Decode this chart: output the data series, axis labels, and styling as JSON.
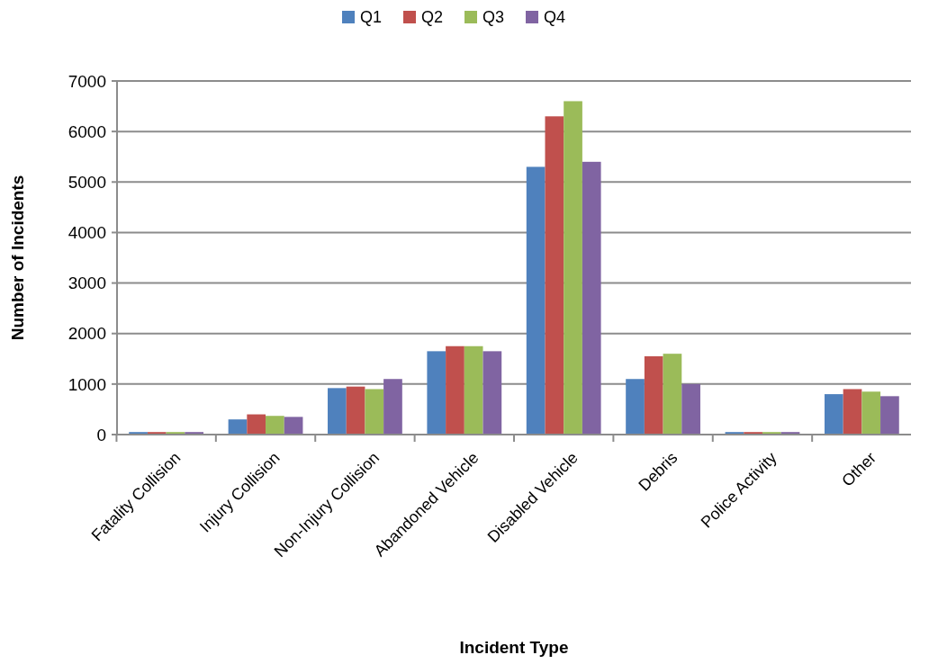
{
  "chart_data": {
    "type": "bar",
    "xlabel": "Incident Type",
    "ylabel": "Number of Incidents",
    "categories": [
      "Fatality Collision",
      "Injury Collision",
      "Non-Injury Collision",
      "Abandoned Vehicle",
      "Disabled Vehicle",
      "Debris",
      "Police Activity",
      "Other"
    ],
    "series": [
      {
        "name": "Q1",
        "color": "#4f81bd",
        "values": [
          50,
          300,
          920,
          1650,
          5300,
          1100,
          50,
          800
        ]
      },
      {
        "name": "Q2",
        "color": "#c0504d",
        "values": [
          50,
          400,
          950,
          1750,
          6300,
          1550,
          50,
          900
        ]
      },
      {
        "name": "Q3",
        "color": "#9bbb59",
        "values": [
          50,
          370,
          900,
          1750,
          6600,
          1600,
          50,
          850
        ]
      },
      {
        "name": "Q4",
        "color": "#8064a2",
        "values": [
          50,
          350,
          1100,
          1650,
          5400,
          1000,
          50,
          760
        ]
      }
    ],
    "ylim": [
      0,
      7000
    ],
    "yticks": [
      0,
      1000,
      2000,
      3000,
      4000,
      5000,
      6000,
      7000
    ],
    "grid": "y",
    "legend": "top"
  }
}
